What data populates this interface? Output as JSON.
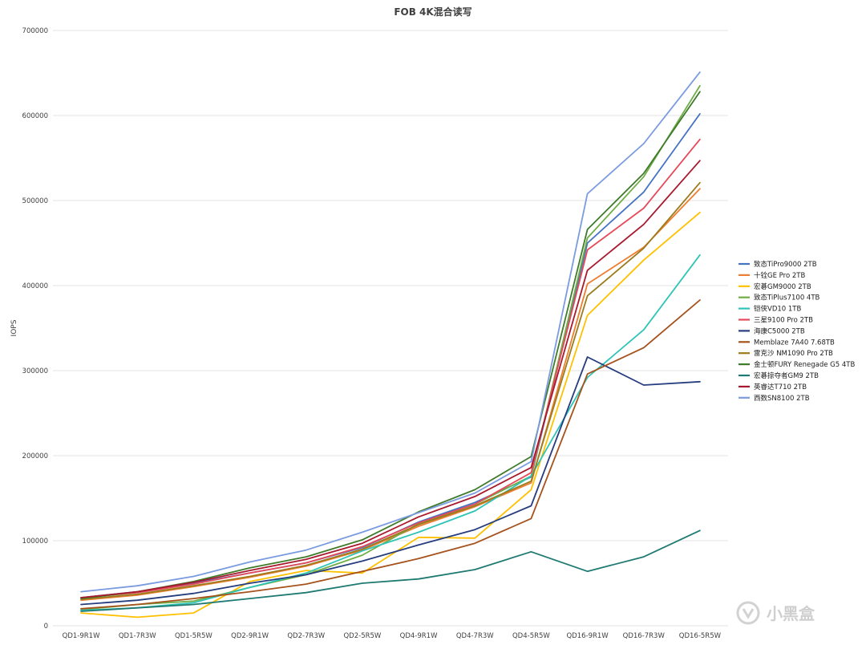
{
  "chart_data": {
    "type": "line",
    "title": "FOB 4K混合读写",
    "xlabel": "",
    "ylabel": "IOPS",
    "ylim": [
      0,
      700000
    ],
    "yticks": [
      0,
      100000,
      200000,
      300000,
      400000,
      500000,
      600000,
      700000
    ],
    "ytick_labels": [
      "0",
      "100000",
      "200000",
      "300000",
      "400000",
      "500000",
      "600000",
      "700000"
    ],
    "grid": true,
    "legend_position": "right",
    "categories": [
      "QD1-9R1W",
      "QD1-7R3W",
      "QD1-5R5W",
      "QD2-9R1W",
      "QD2-7R3W",
      "QD2-5R5W",
      "QD4-9R1W",
      "QD4-7R3W",
      "QD4-5R5W",
      "QD16-9R1W",
      "QD16-7R3W",
      "QD16-5R5W"
    ],
    "series": [
      {
        "name": "致态TiPro9000 2TB",
        "color": "#4472c4",
        "values": [
          33000,
          40000,
          50000,
          62000,
          74000,
          92000,
          122000,
          145000,
          175000,
          450000,
          510000,
          602000
        ]
      },
      {
        "name": "十铨GE Pro 2TB",
        "color": "#ed7d31",
        "values": [
          30000,
          36000,
          46000,
          57000,
          70000,
          89000,
          117000,
          140000,
          168000,
          402000,
          445000,
          514000
        ]
      },
      {
        "name": "宏碁GM9000 2TB",
        "color": "#ffc000",
        "values": [
          15000,
          10000,
          15000,
          52000,
          65000,
          62000,
          104000,
          103000,
          160000,
          365000,
          430000,
          486000
        ]
      },
      {
        "name": "致态TiPlus7100 4TB",
        "color": "#70ad47",
        "values": [
          19000,
          25000,
          29000,
          45000,
          60000,
          83000,
          120000,
          143000,
          176000,
          456000,
          528000,
          635000
        ]
      },
      {
        "name": "铠侠VD10 1TB",
        "color": "#2ec4b6",
        "values": [
          18000,
          21000,
          27000,
          45000,
          62000,
          88000,
          110000,
          135000,
          176000,
          292000,
          348000,
          436000
        ]
      },
      {
        "name": "三星9100 Pro 2TB",
        "color": "#e64a5a",
        "values": [
          33000,
          39000,
          49000,
          62000,
          74000,
          93000,
          121000,
          143000,
          180000,
          442000,
          491000,
          572000
        ]
      },
      {
        "name": "海康C5000 2TB",
        "color": "#263e7e",
        "values": [
          25000,
          30000,
          38000,
          50000,
          60000,
          76000,
          95000,
          113000,
          141000,
          316000,
          283000,
          287000
        ]
      },
      {
        "name": "Memblaze 7A40 7.68TB",
        "color": "#a5521c",
        "values": [
          20000,
          25000,
          32000,
          40000,
          49000,
          64000,
          79000,
          97000,
          126000,
          296000,
          327000,
          383000
        ]
      },
      {
        "name": "雷克沙 NM1090 Pro 2TB",
        "color": "#9b7b1b",
        "values": [
          31000,
          37000,
          47000,
          58000,
          71000,
          90000,
          119000,
          141000,
          170000,
          388000,
          444000,
          521000
        ]
      },
      {
        "name": "金士顿FURY Renegade G5 4TB",
        "color": "#3f7b2b",
        "values": [
          32000,
          40000,
          52000,
          68000,
          81000,
          101000,
          134000,
          160000,
          199000,
          466000,
          532000,
          628000
        ]
      },
      {
        "name": "宏碁掠夺者GM9 2TB",
        "color": "#1f7a72",
        "values": [
          17000,
          21000,
          25000,
          32000,
          39000,
          50000,
          55000,
          66000,
          87000,
          64000,
          81000,
          112000
        ]
      },
      {
        "name": "英睿达T710 2TB",
        "color": "#a8192e",
        "values": [
          33000,
          40000,
          51000,
          65000,
          78000,
          97000,
          128000,
          152000,
          186000,
          418000,
          472000,
          547000
        ]
      },
      {
        "name": "西数SN8100 2TB",
        "color": "#7a9be0",
        "values": [
          40000,
          47000,
          58000,
          75000,
          89000,
          110000,
          133000,
          156000,
          193000,
          508000,
          567000,
          651000
        ]
      }
    ]
  },
  "watermark": {
    "text": "小黑盒"
  }
}
